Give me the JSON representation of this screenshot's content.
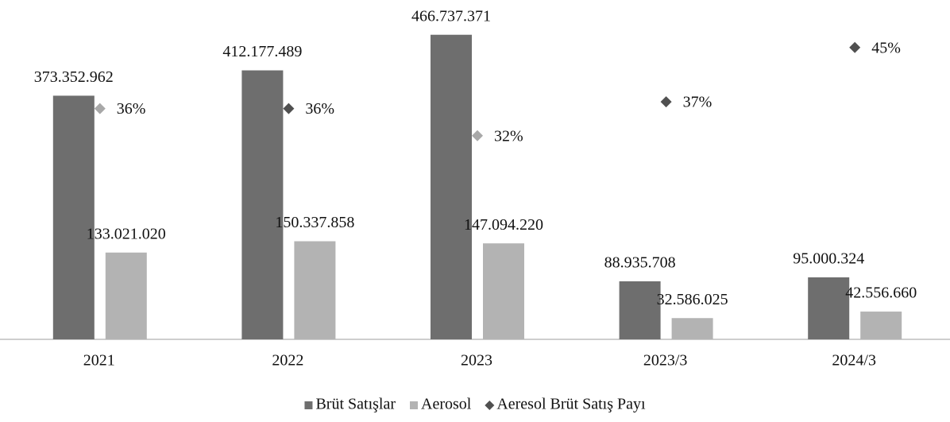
{
  "chart_data": {
    "type": "bar",
    "categories": [
      "2021",
      "2022",
      "2023",
      "2023/3",
      "2024/3"
    ],
    "ylim": [
      0,
      520000000
    ],
    "y2lim": [
      2,
      52
    ],
    "series": [
      {
        "name": "Brüt Satışlar",
        "color": "#6e6e6e",
        "values": [
          373352962,
          412177489,
          466737371,
          88935708,
          95000324
        ],
        "value_labels": [
          "373.352.962",
          "412.177.489",
          "466.737.371",
          "88.935.708",
          "95.000.324"
        ]
      },
      {
        "name": "Aerosol",
        "color": "#b3b3b3",
        "values": [
          133021020,
          150337858,
          147094220,
          32586025,
          42556660
        ],
        "value_labels": [
          "133.021.020",
          "150.337.858",
          "147.094.220",
          "32.586.025",
          "42.556.660"
        ]
      },
      {
        "name": "Aeresol Brüt Satış Payı",
        "type": "scatter",
        "axis": "y2",
        "color": "#505050",
        "colors": [
          "#a8a8a8",
          "#505050",
          "#a8a8a8",
          "#505050",
          "#505050"
        ],
        "values": [
          36,
          36,
          32,
          37,
          45
        ],
        "value_labels": [
          "36%",
          "36%",
          "32%",
          "37%",
          "45%"
        ]
      }
    ]
  }
}
